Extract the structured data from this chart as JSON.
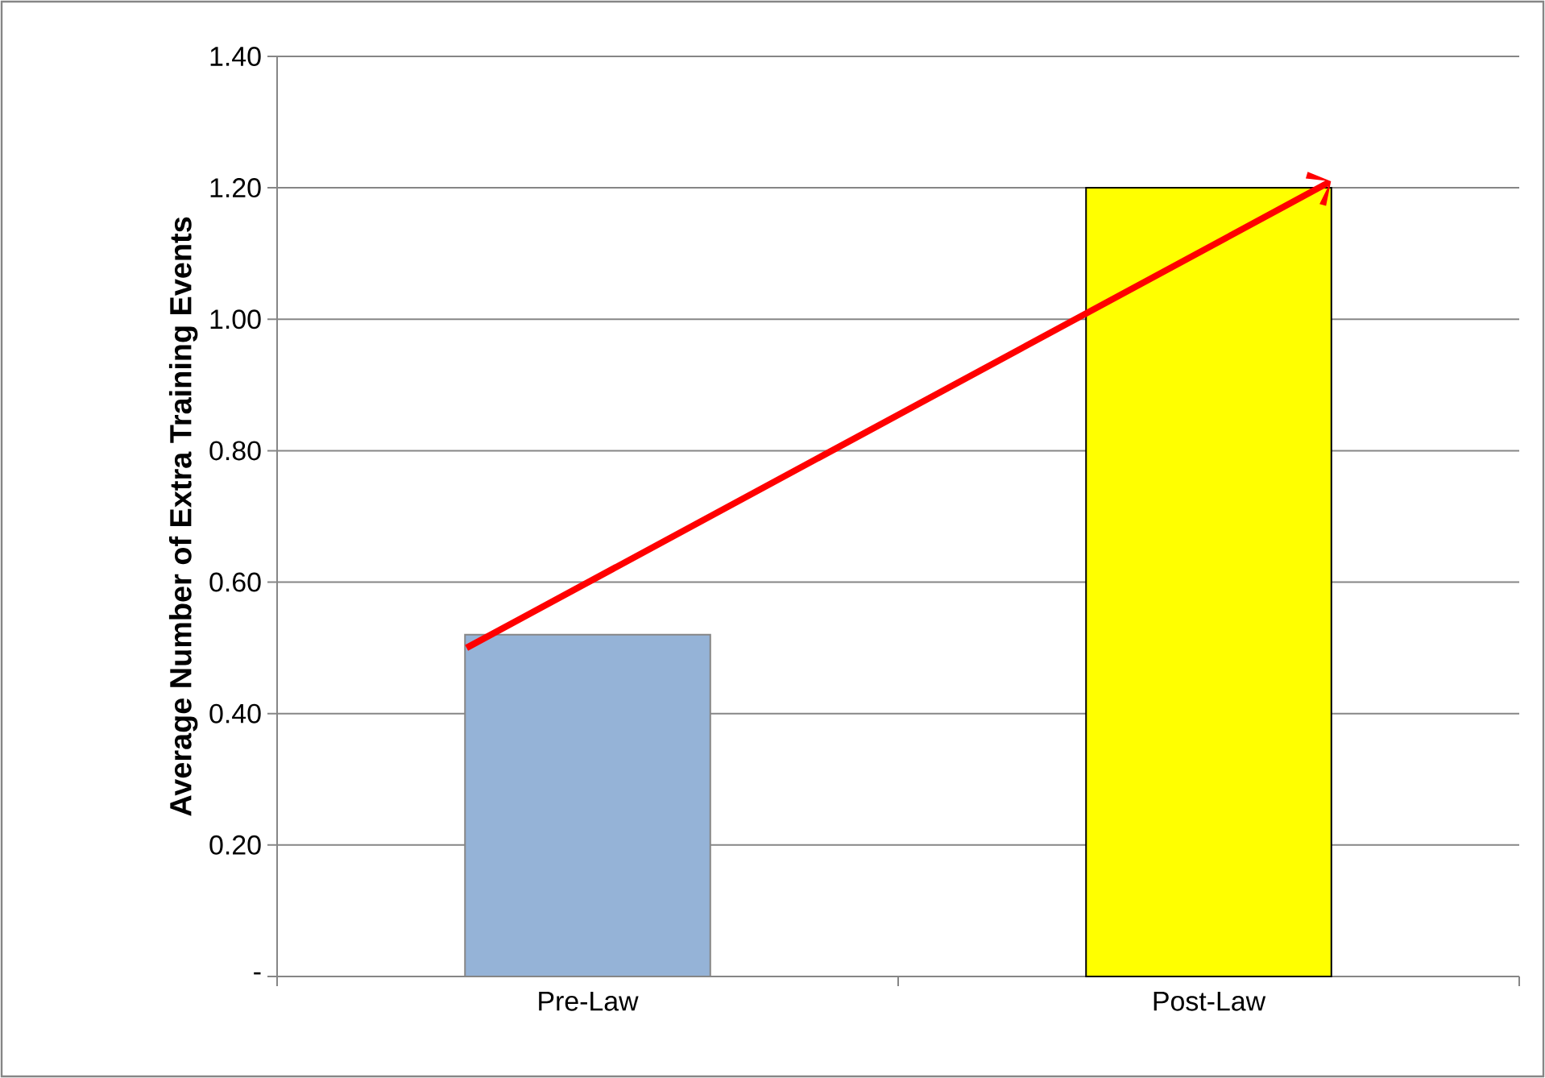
{
  "chart_data": {
    "type": "bar",
    "ylabel": "Average Number of Extra Training Events",
    "categories": [
      "Pre-Law",
      "Post-Law"
    ],
    "values": [
      0.52,
      1.2
    ],
    "colors": [
      "#95b3d7",
      "#ffff00"
    ],
    "ylim": [
      0,
      1.4
    ],
    "yticks": [
      {
        "value": 0,
        "label": "-"
      },
      {
        "value": 0.2,
        "label": "0.20"
      },
      {
        "value": 0.4,
        "label": "0.40"
      },
      {
        "value": 0.6,
        "label": "0.60"
      },
      {
        "value": 0.8,
        "label": "0.80"
      },
      {
        "value": 1.0,
        "label": "1.00"
      },
      {
        "value": 1.2,
        "label": "1.20"
      },
      {
        "value": 1.4,
        "label": "1.40"
      }
    ],
    "grid": "y"
  }
}
